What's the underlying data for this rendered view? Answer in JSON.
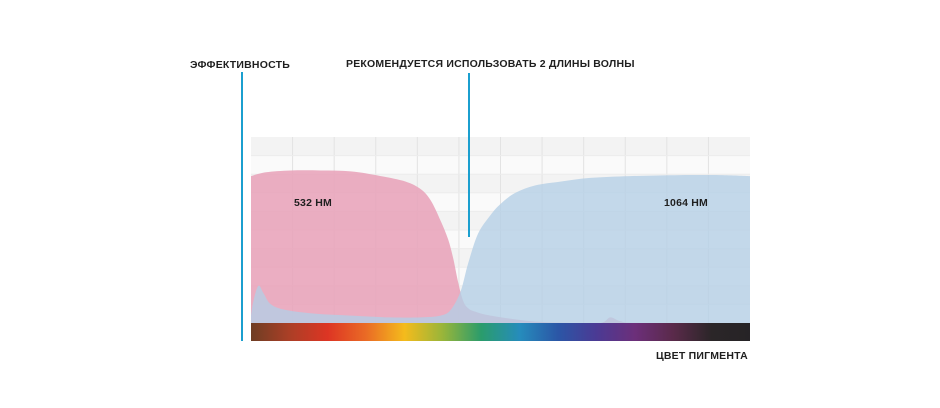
{
  "chart_data": {
    "type": "area",
    "ylabel": "ЭФФЕКТИВНОСТЬ",
    "xlabel": "ЦВЕТ ПИГМЕНТА",
    "annotation": "РЕКОМЕНДУЕТСЯ ИСПОЛЬЗОВАТЬ 2 ДЛИНЫ ВОЛНЫ",
    "xlim": [
      0,
      100
    ],
    "ylim": [
      0,
      100
    ],
    "grid": true,
    "series": [
      {
        "name": "532 НМ",
        "color": "#e8a3b9",
        "points": [
          [
            0,
            79
          ],
          [
            3,
            81
          ],
          [
            8,
            82
          ],
          [
            14,
            82
          ],
          [
            20,
            81.5
          ],
          [
            26,
            79
          ],
          [
            31,
            76
          ],
          [
            34,
            72
          ],
          [
            36,
            66
          ],
          [
            38,
            55
          ],
          [
            39.5,
            45
          ],
          [
            40.5,
            35
          ],
          [
            41.5,
            22
          ],
          [
            42.5,
            12
          ],
          [
            43.5,
            8
          ],
          [
            45,
            6
          ],
          [
            48,
            4
          ],
          [
            56,
            1
          ],
          [
            64,
            0
          ],
          [
            70,
            0
          ],
          [
            72,
            3
          ],
          [
            74,
            1
          ],
          [
            78,
            0
          ],
          [
            100,
            0
          ]
        ]
      },
      {
        "name": "1064 НМ",
        "color": "#b3cee6",
        "points": [
          [
            0,
            4
          ],
          [
            0.5,
            12
          ],
          [
            1.5,
            20
          ],
          [
            2.5,
            16
          ],
          [
            4,
            10
          ],
          [
            7,
            7
          ],
          [
            13,
            5
          ],
          [
            20,
            4
          ],
          [
            28,
            3
          ],
          [
            34,
            3
          ],
          [
            38,
            4
          ],
          [
            40,
            7
          ],
          [
            42,
            17
          ],
          [
            43.5,
            32
          ],
          [
            45.5,
            48
          ],
          [
            48,
            58
          ],
          [
            50,
            64
          ],
          [
            53,
            70
          ],
          [
            57,
            74
          ],
          [
            62,
            76
          ],
          [
            68,
            78
          ],
          [
            76,
            79
          ],
          [
            86,
            79.5
          ],
          [
            94,
            79.5
          ],
          [
            100,
            79
          ]
        ]
      }
    ],
    "x_axis_colors": [
      "#6e3d24",
      "#ab3f26",
      "#dd3524",
      "#ea6b25",
      "#f4bb1c",
      "#98b53a",
      "#2a9c6c",
      "#268cbc",
      "#2b56a6",
      "#4b3a94",
      "#6c2f7a",
      "#5a2a4a",
      "#2b2628",
      "#262326"
    ]
  }
}
